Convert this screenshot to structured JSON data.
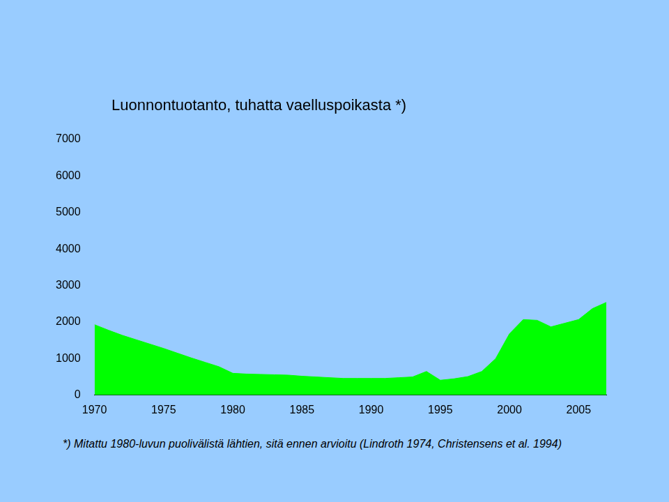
{
  "chart_data": {
    "type": "area",
    "title": "Luonnontuotanto, tuhatta vaelluspoikasta *)",
    "annotation": "*) Mitattu 1980-luvun puolivälistä lähtien, sitä ennen arvioitu (Lindroth 1974, Christensens et al. 1994)",
    "x": [
      1970,
      1971,
      1972,
      1973,
      1974,
      1975,
      1976,
      1977,
      1978,
      1979,
      1980,
      1981,
      1982,
      1983,
      1984,
      1985,
      1986,
      1987,
      1988,
      1989,
      1990,
      1991,
      1992,
      1993,
      1994,
      1995,
      1996,
      1997,
      1998,
      1999,
      2000,
      2001,
      2002,
      2003,
      2004,
      2005,
      2006,
      2007
    ],
    "values": [
      1930,
      1780,
      1640,
      1520,
      1400,
      1280,
      1150,
      1020,
      900,
      780,
      600,
      580,
      570,
      560,
      550,
      520,
      500,
      480,
      460,
      460,
      460,
      460,
      480,
      500,
      650,
      410,
      450,
      510,
      650,
      1000,
      1680,
      2070,
      2050,
      1870,
      1970,
      2070,
      2370,
      2540
    ],
    "color": "#00ff00",
    "xlim": [
      1970,
      2007
    ],
    "xticks": [
      1970,
      1975,
      1980,
      1985,
      1990,
      1995,
      2000,
      2005
    ],
    "ylim": [
      0,
      7000
    ],
    "yticks": [
      0,
      1000,
      2000,
      3000,
      4000,
      5000,
      6000,
      7000
    ],
    "grid": false
  }
}
